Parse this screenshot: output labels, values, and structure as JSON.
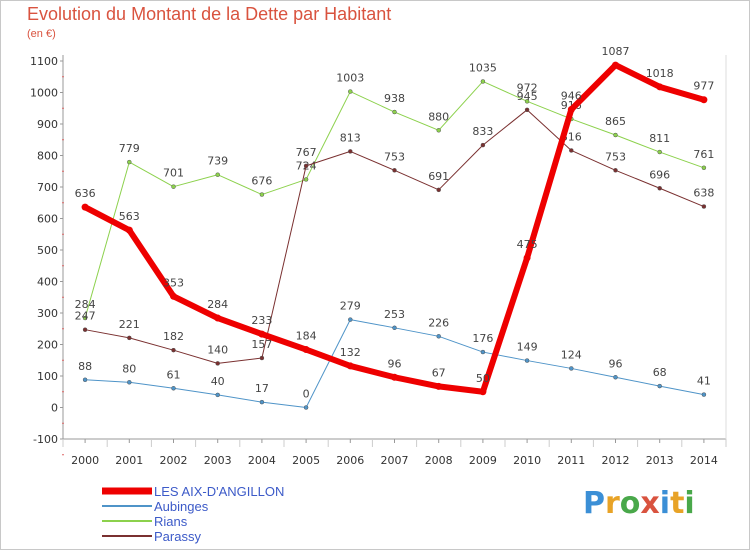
{
  "title": "Evolution du Montant de la Dette par Habitant",
  "subtitle": "(en €)",
  "logo": {
    "text": "Proxiti",
    "letters": [
      {
        "ch": "P",
        "color": "#3b8fd6"
      },
      {
        "ch": "r",
        "color": "#e8a327"
      },
      {
        "ch": "o",
        "color": "#49a84a"
      },
      {
        "ch": "x",
        "color": "#d9533f"
      },
      {
        "ch": "i",
        "color": "#3b8fd6"
      },
      {
        "ch": "t",
        "color": "#e8a327"
      },
      {
        "ch": "i",
        "color": "#49a84a"
      }
    ]
  },
  "chart_data": {
    "type": "line",
    "x": [
      "2000",
      "2001",
      "2002",
      "2003",
      "2004",
      "2005",
      "2006",
      "2007",
      "2008",
      "2009",
      "2010",
      "2011",
      "2012",
      "2013",
      "2014"
    ],
    "ylim": [
      -100,
      1100
    ],
    "yticks": [
      -100,
      0,
      100,
      200,
      300,
      400,
      500,
      600,
      700,
      800,
      900,
      1000,
      1100
    ],
    "grid": false,
    "legend_placement": "bottom-left",
    "series": [
      {
        "name": "Aubinges",
        "color": "#4f94c8",
        "width": 1,
        "dot": 4,
        "values": [
          88,
          80,
          61,
          40,
          17,
          0,
          279,
          253,
          226,
          176,
          149,
          124,
          96,
          68,
          41
        ],
        "labels": [
          "88",
          "80",
          "61",
          "40",
          "17",
          "0",
          "279",
          "253",
          "226",
          "176",
          "149",
          "124",
          "96",
          "68",
          "41"
        ]
      },
      {
        "name": "Rians",
        "color": "#8cd14c",
        "width": 1,
        "dot": 4,
        "values": [
          284,
          779,
          701,
          739,
          676,
          724,
          1003,
          938,
          880,
          1035,
          972,
          916,
          865,
          811,
          761
        ],
        "labels": [
          "284",
          "779",
          "701",
          "739",
          "676",
          "724",
          "1003",
          "938",
          "880",
          "1035",
          "972",
          "916",
          "865",
          "811",
          "761"
        ]
      },
      {
        "name": "Parassy",
        "color": "#7a3030",
        "width": 1,
        "dot": 4,
        "values": [
          247,
          221,
          182,
          140,
          157,
          767,
          813,
          753,
          691,
          833,
          945,
          816,
          753,
          696,
          638
        ],
        "labels": [
          "247",
          "221",
          "182",
          "140",
          "157",
          "767",
          "813",
          "753",
          "691",
          "833",
          "945",
          "816",
          "753",
          "696",
          "638"
        ]
      },
      {
        "name": "LES AIX-D'ANGILLON",
        "color": "#ee0000",
        "width": 6,
        "dot": 7,
        "values": [
          636,
          563,
          353,
          284,
          233,
          184,
          132,
          96,
          67,
          50,
          475,
          946,
          1087,
          1018,
          977
        ],
        "labels": [
          "636",
          "563",
          "353",
          "284",
          "233",
          "184",
          "132",
          "96",
          "67",
          "50",
          "475",
          "946",
          "1087",
          "1018",
          "977"
        ]
      }
    ],
    "legend": [
      {
        "name": "LES AIX-D'ANGILLON",
        "color": "#ee0000",
        "width": 7
      },
      {
        "name": "Aubinges",
        "color": "#4f94c8",
        "width": 2
      },
      {
        "name": "Rians",
        "color": "#8cd14c",
        "width": 2
      },
      {
        "name": "Parassy",
        "color": "#7a3030",
        "width": 2
      }
    ],
    "legend_text_color": "#3c5ac8"
  }
}
